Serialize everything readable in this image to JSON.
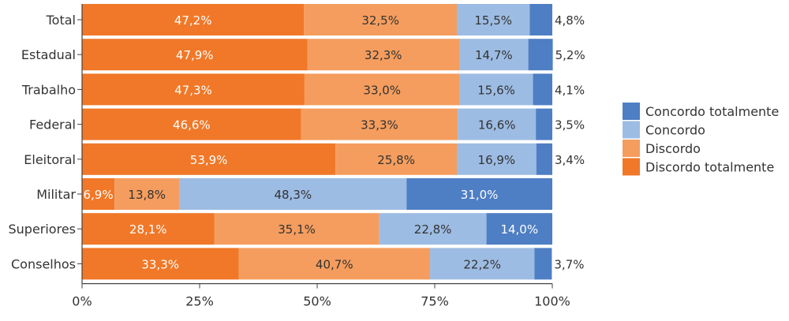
{
  "chart_data": {
    "type": "bar",
    "orientation": "horizontal",
    "stacked": true,
    "normalized": true,
    "title": "",
    "xlabel": "",
    "ylabel": "",
    "xlim": [
      0,
      100
    ],
    "x_ticks": [
      "0%",
      "25%",
      "50%",
      "75%",
      "100%"
    ],
    "categories": [
      "Total",
      "Estadual",
      "Trabalho",
      "Federal",
      "Eleitoral",
      "Militar",
      "Superiores",
      "Conselhos"
    ],
    "series": [
      {
        "name": "Discordo totalmente",
        "color": "#F07828",
        "label_color": "#ffffff",
        "values": [
          47.2,
          47.9,
          47.3,
          46.6,
          53.9,
          6.9,
          28.1,
          33.3
        ]
      },
      {
        "name": "Discordo",
        "color": "#F59D5E",
        "label_color": "#333333",
        "values": [
          32.5,
          32.3,
          33.0,
          33.3,
          25.8,
          13.8,
          35.1,
          40.7
        ]
      },
      {
        "name": "Concordo",
        "color": "#9DBCE3",
        "label_color": "#333333",
        "values": [
          15.5,
          14.7,
          15.6,
          16.6,
          16.9,
          48.3,
          22.8,
          22.2
        ]
      },
      {
        "name": "Concordo totalmente",
        "color": "#4E7EC4",
        "label_color": "#ffffff",
        "values": [
          4.8,
          5.2,
          4.1,
          3.5,
          3.4,
          31.0,
          14.0,
          3.7
        ]
      }
    ],
    "data_labels": [
      [
        "47,2%",
        "32,5%",
        "15,5%",
        "4,8%"
      ],
      [
        "47,9%",
        "32,3%",
        "14,7%",
        "5,2%"
      ],
      [
        "47,3%",
        "33,0%",
        "15,6%",
        "4,1%"
      ],
      [
        "46,6%",
        "33,3%",
        "16,6%",
        "3,5%"
      ],
      [
        "53,9%",
        "25,8%",
        "16,9%",
        "3,4%"
      ],
      [
        "6,9%",
        "13,8%",
        "48,3%",
        "31,0%"
      ],
      [
        "28,1%",
        "35,1%",
        "22,8%",
        "14,0%"
      ],
      [
        "33,3%",
        "40,7%",
        "22,2%",
        "3,7%"
      ]
    ],
    "legend": {
      "placement": "right",
      "entries": [
        "Concordo totalmente",
        "Concordo",
        "Discordo",
        "Discordo totalmente"
      ]
    },
    "grid": false
  }
}
